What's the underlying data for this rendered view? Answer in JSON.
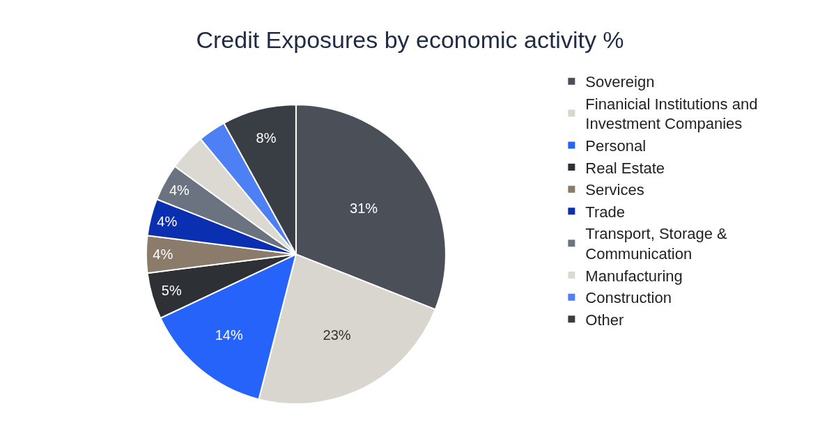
{
  "chart_data": {
    "type": "pie",
    "title": "Credit Exposures by economic activity %",
    "categories": [
      "Sovereign",
      "Finanicial Institutions and Investment Companies",
      "Personal",
      "Real Estate",
      "Services",
      "Trade",
      "Transport, Storage & Communication",
      "Manufacturing",
      "Construction",
      "Other"
    ],
    "values": [
      31,
      23,
      14,
      5,
      4,
      4,
      4,
      4,
      3,
      8
    ],
    "value_labels": [
      "31%",
      "23%",
      "14%",
      "5%",
      "4%",
      "4%",
      "4%",
      null,
      null,
      "8%"
    ],
    "colors": [
      "#4a4f58",
      "#d9d5cf",
      "#2563fa",
      "#2d3035",
      "#8b7b6a",
      "#0a2fb0",
      "#6b7280",
      "#dcd9d3",
      "#4d80f5",
      "#393d44"
    ],
    "legend": "right"
  }
}
